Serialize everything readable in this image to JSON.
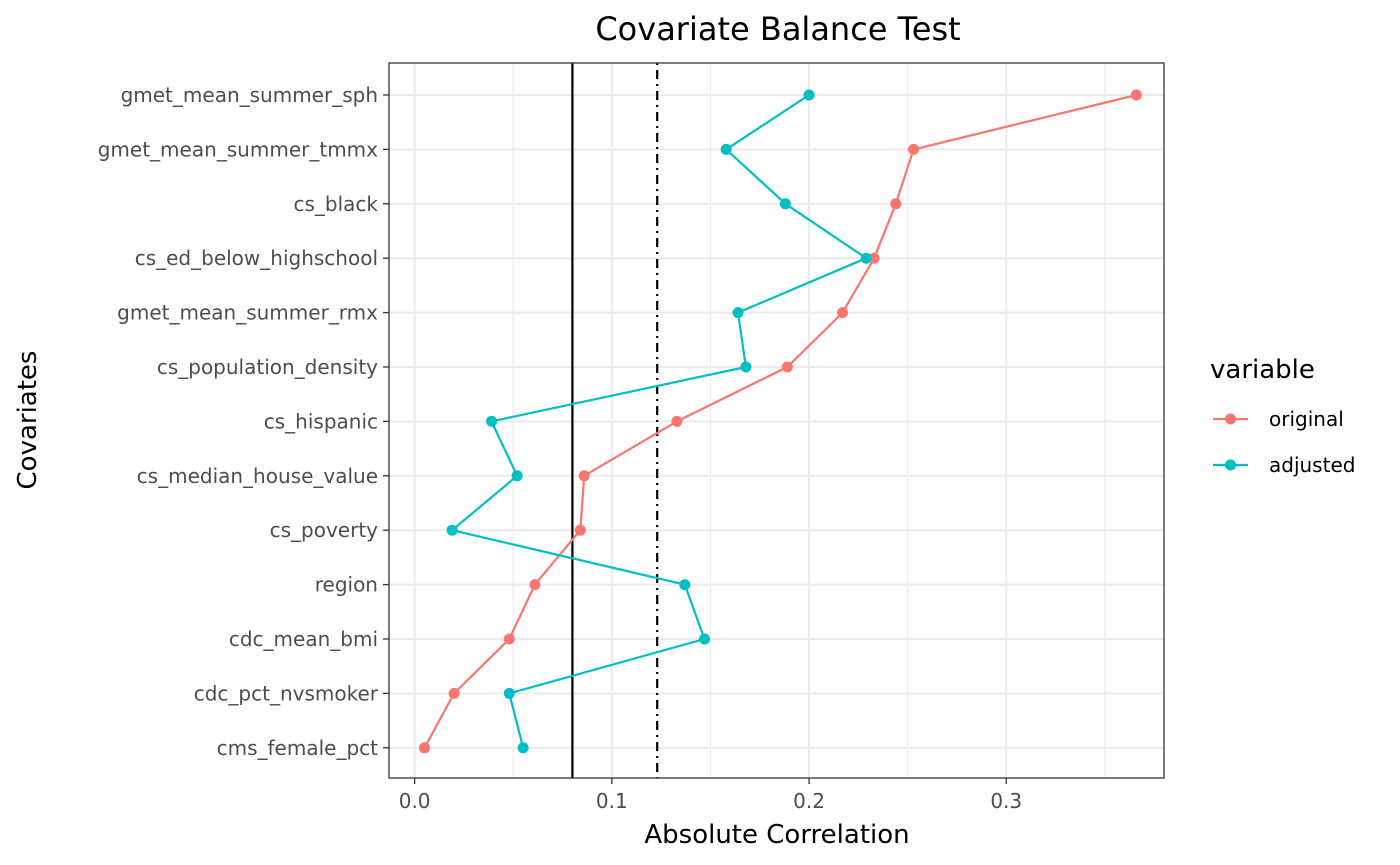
{
  "chart_data": {
    "type": "line",
    "title": "Covariate Balance Test",
    "xlabel": "Absolute Correlation",
    "ylabel": "Covariates",
    "xlim": [
      -0.013,
      0.38
    ],
    "xticks": [
      0.0,
      0.1,
      0.2,
      0.3
    ],
    "xtick_labels": [
      "0.0",
      "0.1",
      "0.2",
      "0.3"
    ],
    "grid": true,
    "categories": [
      "gmet_mean_summer_sph",
      "gmet_mean_summer_tmmx",
      "cs_black",
      "cs_ed_below_highschool",
      "gmet_mean_summer_rmx",
      "cs_population_density",
      "cs_hispanic",
      "cs_median_house_value",
      "cs_poverty",
      "region",
      "cdc_mean_bmi",
      "cdc_pct_nvsmoker",
      "cms_female_pct"
    ],
    "series": [
      {
        "name": "original",
        "color": "#F8766D",
        "values": [
          0.366,
          0.253,
          0.244,
          0.233,
          0.217,
          0.189,
          0.133,
          0.086,
          0.084,
          0.061,
          0.048,
          0.02,
          0.005
        ]
      },
      {
        "name": "adjusted",
        "color": "#00BFC4",
        "values": [
          0.2,
          0.158,
          0.188,
          0.229,
          0.164,
          0.168,
          0.039,
          0.052,
          0.019,
          0.137,
          0.147,
          0.048,
          0.055
        ]
      }
    ],
    "reference_lines": [
      {
        "value": 0.08,
        "style": "solid"
      },
      {
        "value": 0.123,
        "style": "dotdash"
      }
    ],
    "legend": {
      "title": "variable",
      "position": "right"
    }
  }
}
